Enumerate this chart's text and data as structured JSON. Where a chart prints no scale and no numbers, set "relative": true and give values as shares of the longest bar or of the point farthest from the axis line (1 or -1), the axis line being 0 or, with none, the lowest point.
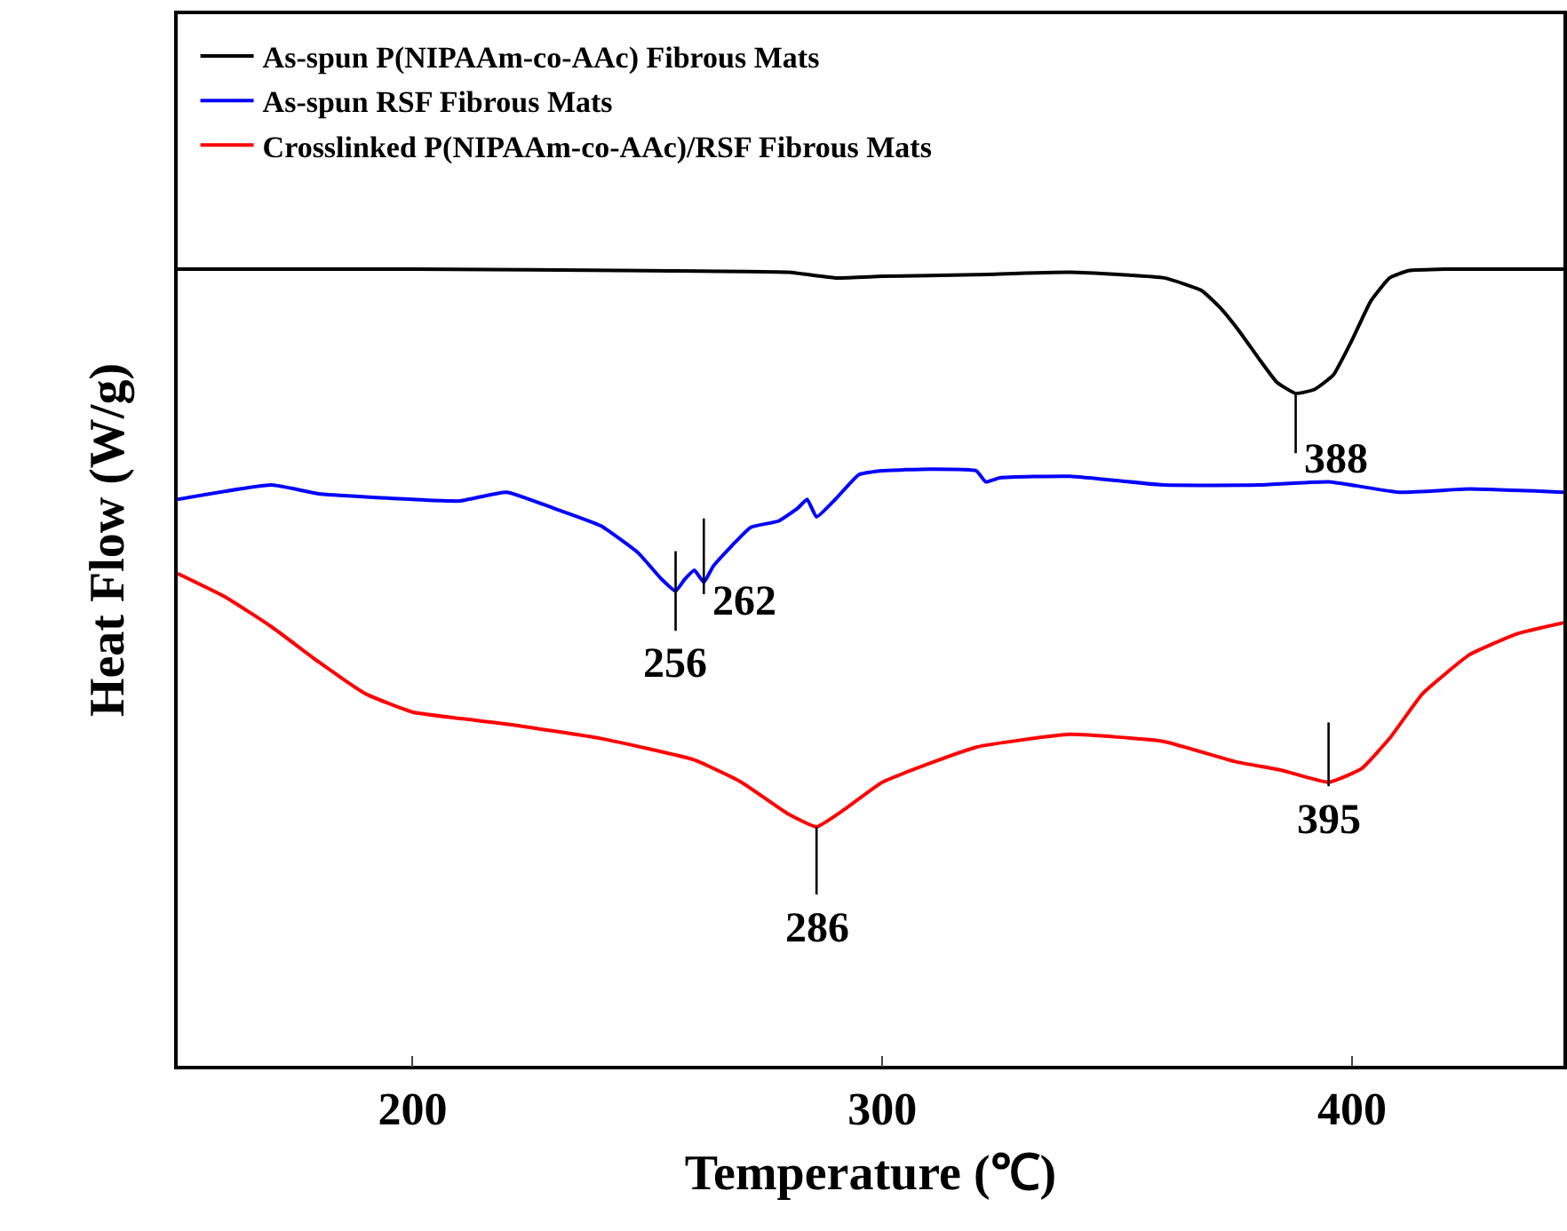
{
  "chart_data": {
    "type": "line",
    "relative": true,
    "xlabel": "Temperature (℃)",
    "ylabel": "Heat Flow (W/g)",
    "xlim": [
      150,
      445
    ],
    "xticks": [
      200,
      300,
      400
    ],
    "grid": false,
    "legend": "top left",
    "marker": "none",
    "line_style": "solid",
    "series": [
      {
        "name": "As-spun P(NIPAAm-co-AAc) Fibrous Mats",
        "color": "#000000",
        "x": [
          150,
          200,
          250,
          280,
          290,
          300,
          320,
          340,
          360,
          368,
          372,
          376,
          380,
          384,
          388,
          392,
          396,
          400,
          404,
          408,
          412,
          420,
          445
        ],
        "values": [
          1.0,
          1.0,
          0.998,
          0.996,
          0.989,
          0.991,
          0.993,
          0.996,
          0.989,
          0.973,
          0.951,
          0.922,
          0.889,
          0.858,
          0.844,
          0.849,
          0.867,
          0.911,
          0.96,
          0.989,
          0.998,
          1.0,
          1.0
        ]
      },
      {
        "name": "As-spun RSF Fibrous Mats",
        "color": "#0000ff",
        "x": [
          150,
          170,
          180,
          200,
          210,
          220,
          230,
          240,
          248,
          253,
          256,
          258,
          260,
          262,
          264,
          268,
          272,
          278,
          282,
          284,
          286,
          290,
          295,
          300,
          310,
          320,
          322,
          325,
          340,
          360,
          380,
          395,
          410,
          425,
          445
        ],
        "values": [
          0.711,
          0.729,
          0.718,
          0.711,
          0.709,
          0.72,
          0.7,
          0.678,
          0.644,
          0.611,
          0.596,
          0.611,
          0.622,
          0.607,
          0.627,
          0.653,
          0.676,
          0.684,
          0.7,
          0.711,
          0.689,
          0.711,
          0.742,
          0.747,
          0.749,
          0.747,
          0.733,
          0.738,
          0.74,
          0.729,
          0.729,
          0.733,
          0.72,
          0.724,
          0.72
        ]
      },
      {
        "name": "Crosslinked P(NIPAAm-co-AAc)/RSF Fibrous Mats",
        "color": "#ff0000",
        "x": [
          150,
          160,
          170,
          180,
          190,
          200,
          220,
          240,
          260,
          270,
          280,
          286,
          292,
          300,
          320,
          340,
          360,
          375,
          385,
          395,
          402,
          408,
          415,
          425,
          435,
          445
        ],
        "values": [
          0.618,
          0.589,
          0.551,
          0.507,
          0.467,
          0.444,
          0.429,
          0.411,
          0.384,
          0.356,
          0.316,
          0.3,
          0.322,
          0.356,
          0.4,
          0.416,
          0.407,
          0.382,
          0.371,
          0.356,
          0.373,
          0.411,
          0.467,
          0.516,
          0.542,
          0.556
        ]
      }
    ],
    "annotations": [
      {
        "text": "388",
        "x": 388,
        "y": 0.844
      },
      {
        "text": "256",
        "x": 256,
        "y": 0.596
      },
      {
        "text": "262",
        "x": 262,
        "y": 0.607
      },
      {
        "text": "286",
        "x": 286,
        "y": 0.3
      },
      {
        "text": "395",
        "x": 395,
        "y": 0.356
      }
    ]
  }
}
